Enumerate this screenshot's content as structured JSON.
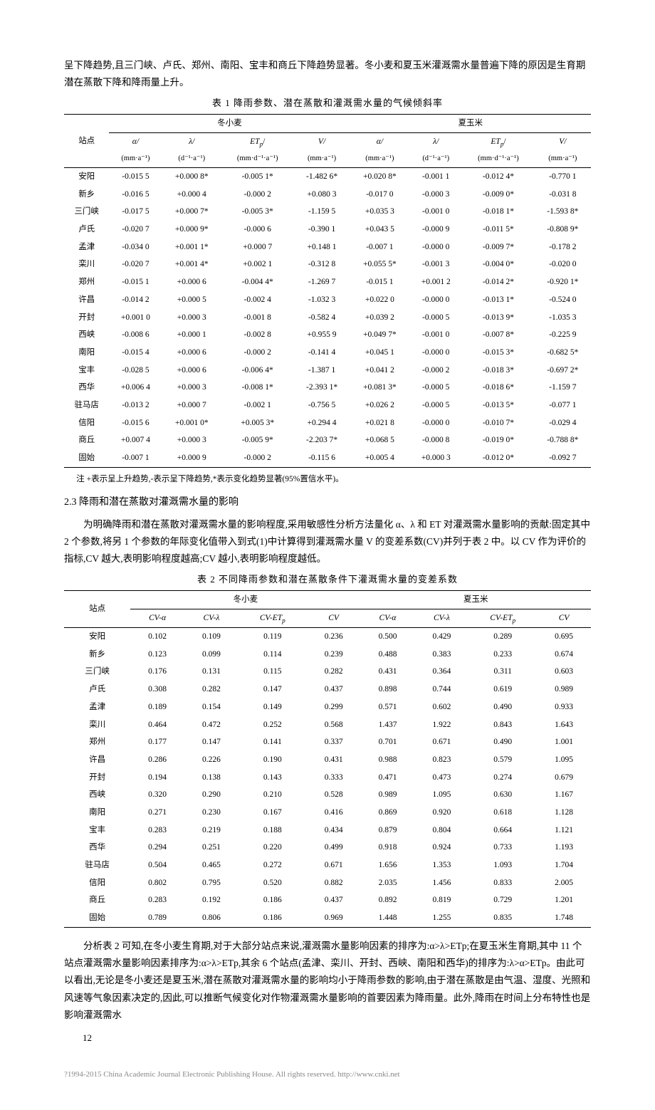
{
  "intro_para_1": "呈下降趋势,且三门峡、卢氏、郑州、南阳、宝丰和商丘下降趋势显著。冬小麦和夏玉米灌溉需水量普遍下降的原因是生育期潜在蒸散下降和降雨量上升。",
  "table1_title": "表 1  降雨参数、潜在蒸散和灌溉需水量的气候倾斜率",
  "table1": {
    "col_station": "站点",
    "group1": "冬小麦",
    "group2": "夏玉米",
    "header_a": "α/",
    "header_l": "λ/",
    "header_et": "ET",
    "header_et_sub": "p",
    "header_et_suf": "/",
    "header_v": "V/",
    "unit_mm_a": "(mm·a⁻¹)",
    "unit_d_a": "(d⁻¹·a⁻¹)",
    "unit_mm_d_a": "(mm·d⁻¹·a⁻¹)",
    "rows": [
      {
        "s": "安阳",
        "w": [
          "-0.015 5",
          "+0.000 8*",
          "-0.005 1*",
          "-1.482 6*"
        ],
        "m": [
          "+0.020 8*",
          "-0.001 1",
          "-0.012 4*",
          "-0.770 1"
        ]
      },
      {
        "s": "新乡",
        "w": [
          "-0.016 5",
          "+0.000 4",
          "-0.000 2",
          "+0.080 3"
        ],
        "m": [
          "-0.017 0",
          "-0.000 3",
          "-0.009 0*",
          "-0.031 8"
        ]
      },
      {
        "s": "三门峡",
        "w": [
          "-0.017 5",
          "+0.000 7*",
          "-0.005 3*",
          "-1.159 5"
        ],
        "m": [
          "+0.035 3",
          "-0.001 0",
          "-0.018 1*",
          "-1.593 8*"
        ]
      },
      {
        "s": "卢氏",
        "w": [
          "-0.020 7",
          "+0.000 9*",
          "-0.000 6",
          "-0.390 1"
        ],
        "m": [
          "+0.043 5",
          "-0.000 9",
          "-0.011 5*",
          "-0.808 9*"
        ]
      },
      {
        "s": "孟津",
        "w": [
          "-0.034 0",
          "+0.001 1*",
          "+0.000 7",
          "+0.148 1"
        ],
        "m": [
          "-0.007 1",
          "-0.000 0",
          "-0.009 7*",
          "-0.178 2"
        ]
      },
      {
        "s": "栾川",
        "w": [
          "-0.020 7",
          "+0.001 4*",
          "+0.002 1",
          "-0.312 8"
        ],
        "m": [
          "+0.055 5*",
          "-0.001 3",
          "-0.004 0*",
          "-0.020 0"
        ]
      },
      {
        "s": "郑州",
        "w": [
          "-0.015 1",
          "+0.000 6",
          "-0.004 4*",
          "-1.269 7"
        ],
        "m": [
          "-0.015 1",
          "+0.001 2",
          "-0.014 2*",
          "-0.920 1*"
        ]
      },
      {
        "s": "许昌",
        "w": [
          "-0.014 2",
          "+0.000 5",
          "-0.002 4",
          "-1.032 3"
        ],
        "m": [
          "+0.022 0",
          "-0.000 0",
          "-0.013 1*",
          "-0.524 0"
        ]
      },
      {
        "s": "开封",
        "w": [
          "+0.001 0",
          "+0.000 3",
          "-0.001 8",
          "-0.582 4"
        ],
        "m": [
          "+0.039 2",
          "-0.000 5",
          "-0.013 9*",
          "-1.035 3"
        ]
      },
      {
        "s": "西峡",
        "w": [
          "-0.008 6",
          "+0.000 1",
          "-0.002 8",
          "+0.955 9"
        ],
        "m": [
          "+0.049 7*",
          "-0.001 0",
          "-0.007 8*",
          "-0.225 9"
        ]
      },
      {
        "s": "南阳",
        "w": [
          "-0.015 4",
          "+0.000 6",
          "-0.000 2",
          "-0.141 4"
        ],
        "m": [
          "+0.045 1",
          "-0.000 0",
          "-0.015 3*",
          "-0.682 5*"
        ]
      },
      {
        "s": "宝丰",
        "w": [
          "-0.028 5",
          "+0.000 6",
          "-0.006 4*",
          "-1.387 1"
        ],
        "m": [
          "+0.041 2",
          "-0.000 2",
          "-0.018 3*",
          "-0.697 2*"
        ]
      },
      {
        "s": "西华",
        "w": [
          "+0.006 4",
          "+0.000 3",
          "-0.008 1*",
          "-2.393 1*"
        ],
        "m": [
          "+0.081 3*",
          "-0.000 5",
          "-0.018 6*",
          "-1.159 7"
        ]
      },
      {
        "s": "驻马店",
        "w": [
          "-0.013 2",
          "+0.000 7",
          "-0.002 1",
          "-0.756 5"
        ],
        "m": [
          "+0.026 2",
          "-0.000 5",
          "-0.013 5*",
          "-0.077 1"
        ]
      },
      {
        "s": "信阳",
        "w": [
          "-0.015 6",
          "+0.001 0*",
          "+0.005 3*",
          "+0.294 4"
        ],
        "m": [
          "+0.021 8",
          "-0.000 0",
          "-0.010 7*",
          "-0.029 4"
        ]
      },
      {
        "s": "商丘",
        "w": [
          "+0.007 4",
          "+0.000 3",
          "-0.005 9*",
          "-2.203 7*"
        ],
        "m": [
          "+0.068 5",
          "-0.000 8",
          "-0.019 0*",
          "-0.788 8*"
        ]
      },
      {
        "s": "固始",
        "w": [
          "-0.007 1",
          "+0.000 9",
          "-0.000 2",
          "-0.115 6"
        ],
        "m": [
          "+0.005 4",
          "+0.000 3",
          "-0.012 0*",
          "-0.092 7"
        ]
      }
    ]
  },
  "table1_note": "注  +表示呈上升趋势,-表示呈下降趋势,*表示变化趋势显著(95%置信水平)。",
  "section_2_3": "2.3  降雨和潜在蒸散对灌溉需水量的影响",
  "para_2_3": "为明确降雨和潜在蒸散对灌溉需水量的影响程度,采用敏感性分析方法量化 α、λ 和 ET 对灌溉需水量影响的贡献:固定其中 2 个参数,将另 1 个参数的年际变化值带入到式(1)中计算得到灌溉需水量 V 的变差系数(CV)并列于表 2 中。以 CV 作为评价的指标,CV 越大,表明影响程度越高;CV 越小,表明影响程度越低。",
  "table2_title": "表 2  不同降雨参数和潜在蒸散条件下灌溉需水量的变差系数",
  "table2": {
    "col_station": "站点",
    "group1": "冬小麦",
    "group2": "夏玉米",
    "h_cva": "CV-α",
    "h_cvl": "CV-λ",
    "h_cvet": "CV-ET",
    "h_cvet_sub": "p",
    "h_cv": "CV",
    "rows": [
      {
        "s": "安阳",
        "w": [
          "0.102",
          "0.109",
          "0.119",
          "0.236"
        ],
        "m": [
          "0.500",
          "0.429",
          "0.289",
          "0.695"
        ]
      },
      {
        "s": "新乡",
        "w": [
          "0.123",
          "0.099",
          "0.114",
          "0.239"
        ],
        "m": [
          "0.488",
          "0.383",
          "0.233",
          "0.674"
        ]
      },
      {
        "s": "三门峡",
        "w": [
          "0.176",
          "0.131",
          "0.115",
          "0.282"
        ],
        "m": [
          "0.431",
          "0.364",
          "0.311",
          "0.603"
        ]
      },
      {
        "s": "卢氏",
        "w": [
          "0.308",
          "0.282",
          "0.147",
          "0.437"
        ],
        "m": [
          "0.898",
          "0.744",
          "0.619",
          "0.989"
        ]
      },
      {
        "s": "孟津",
        "w": [
          "0.189",
          "0.154",
          "0.149",
          "0.299"
        ],
        "m": [
          "0.571",
          "0.602",
          "0.490",
          "0.933"
        ]
      },
      {
        "s": "栾川",
        "w": [
          "0.464",
          "0.472",
          "0.252",
          "0.568"
        ],
        "m": [
          "1.437",
          "1.922",
          "0.843",
          "1.643"
        ]
      },
      {
        "s": "郑州",
        "w": [
          "0.177",
          "0.147",
          "0.141",
          "0.337"
        ],
        "m": [
          "0.701",
          "0.671",
          "0.490",
          "1.001"
        ]
      },
      {
        "s": "许昌",
        "w": [
          "0.286",
          "0.226",
          "0.190",
          "0.431"
        ],
        "m": [
          "0.988",
          "0.823",
          "0.579",
          "1.095"
        ]
      },
      {
        "s": "开封",
        "w": [
          "0.194",
          "0.138",
          "0.143",
          "0.333"
        ],
        "m": [
          "0.471",
          "0.473",
          "0.274",
          "0.679"
        ]
      },
      {
        "s": "西峡",
        "w": [
          "0.320",
          "0.290",
          "0.210",
          "0.528"
        ],
        "m": [
          "0.989",
          "1.095",
          "0.630",
          "1.167"
        ]
      },
      {
        "s": "南阳",
        "w": [
          "0.271",
          "0.230",
          "0.167",
          "0.416"
        ],
        "m": [
          "0.869",
          "0.920",
          "0.618",
          "1.128"
        ]
      },
      {
        "s": "宝丰",
        "w": [
          "0.283",
          "0.219",
          "0.188",
          "0.434"
        ],
        "m": [
          "0.879",
          "0.804",
          "0.664",
          "1.121"
        ]
      },
      {
        "s": "西华",
        "w": [
          "0.294",
          "0.251",
          "0.220",
          "0.499"
        ],
        "m": [
          "0.918",
          "0.924",
          "0.733",
          "1.193"
        ]
      },
      {
        "s": "驻马店",
        "w": [
          "0.504",
          "0.465",
          "0.272",
          "0.671"
        ],
        "m": [
          "1.656",
          "1.353",
          "1.093",
          "1.704"
        ]
      },
      {
        "s": "信阳",
        "w": [
          "0.802",
          "0.795",
          "0.520",
          "0.882"
        ],
        "m": [
          "2.035",
          "1.456",
          "0.833",
          "2.005"
        ]
      },
      {
        "s": "商丘",
        "w": [
          "0.283",
          "0.192",
          "0.186",
          "0.437"
        ],
        "m": [
          "0.892",
          "0.819",
          "0.729",
          "1.201"
        ]
      },
      {
        "s": "固始",
        "w": [
          "0.789",
          "0.806",
          "0.186",
          "0.969"
        ],
        "m": [
          "1.448",
          "1.255",
          "0.835",
          "1.748"
        ]
      }
    ]
  },
  "analysis_para": "分析表 2 可知,在冬小麦生育期,对于大部分站点来说,灌溉需水量影响因素的排序为:α>λ>ETp;在夏玉米生育期,其中 11 个站点灌溉需水量影响因素排序为:α>λ>ETp,其余 6 个站点(孟津、栾川、开封、西峡、南阳和西华)的排序为:λ>α>ETp。由此可以看出,无论是冬小麦还是夏玉米,潜在蒸散对灌溉需水量的影响均小于降雨参数的影响,由于潜在蒸散是由气温、湿度、光照和风速等气象因素决定的,因此,可以推断气候变化对作物灌溉需水量影响的首要因素为降雨量。此外,降雨在时间上分布特性也是影响灌溉需水",
  "page_num": "12",
  "footer_text": "?1994-2015 China Academic Journal Electronic Publishing House. All rights reserved.   http://www.cnki.net"
}
